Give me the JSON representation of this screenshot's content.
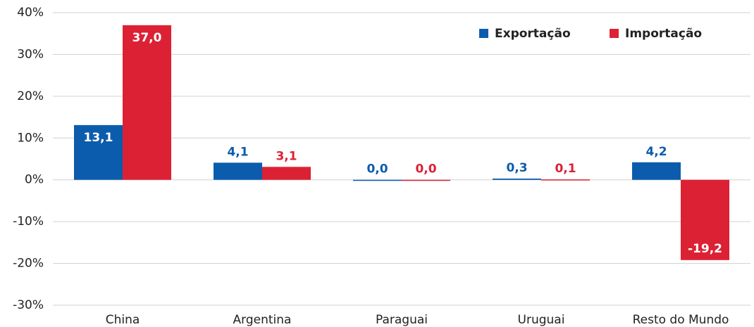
{
  "chart_data": {
    "type": "bar",
    "categories": [
      "China",
      "Argentina",
      "Paraguai",
      "Uruguai",
      "Resto do Mundo"
    ],
    "series": [
      {
        "name": "Exportação",
        "color": "#0b5cad",
        "values": [
          13.1,
          4.1,
          0.0,
          0.3,
          4.2
        ],
        "value_labels": [
          "13,1",
          "4,1",
          "0,0",
          "0,3",
          "4,2"
        ]
      },
      {
        "name": "Importação",
        "color": "#dc2134",
        "values": [
          37.0,
          3.1,
          0.0,
          0.1,
          -19.2
        ],
        "value_labels": [
          "37,0",
          "3,1",
          "0,0",
          "0,1",
          "-19,2"
        ]
      }
    ],
    "ylim": [
      -30,
      40
    ],
    "yticks": [
      {
        "value": -30,
        "label": "-30%"
      },
      {
        "value": -20,
        "label": "-20%"
      },
      {
        "value": -10,
        "label": "-10%"
      },
      {
        "value": 0,
        "label": "0%"
      },
      {
        "value": 10,
        "label": "10%"
      },
      {
        "value": 20,
        "label": "20%"
      },
      {
        "value": 30,
        "label": "30%"
      },
      {
        "value": 40,
        "label": "40%"
      }
    ],
    "grid": true,
    "legend": "top-right"
  }
}
